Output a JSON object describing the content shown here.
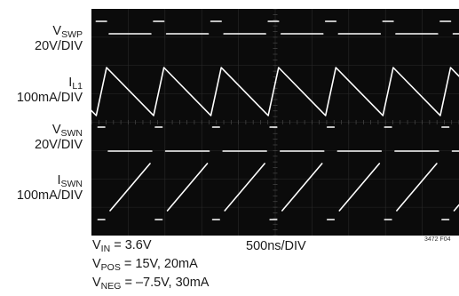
{
  "chart_data": {
    "type": "line",
    "title": "",
    "timebase": "500ns/DIV",
    "figure_id": "3472 F04",
    "traces": [
      {
        "symbol": "V",
        "subscript": "SWP",
        "scale": "20V/DIV"
      },
      {
        "symbol": "I",
        "subscript": "L1",
        "scale": "100mA/DIV"
      },
      {
        "symbol": "V",
        "subscript": "SWN",
        "scale": "20V/DIV"
      },
      {
        "symbol": "I",
        "subscript": "SWN",
        "scale": "100mA/DIV"
      }
    ],
    "conditions": [
      {
        "symbol": "V",
        "subscript": "IN",
        "value": "= 3.6V"
      },
      {
        "symbol": "V",
        "subscript": "POS",
        "value": "= 15V, 20mA"
      },
      {
        "symbol": "V",
        "subscript": "NEG",
        "value": "= –7.5V, 30mA"
      }
    ],
    "x_divisions": 10,
    "y_divisions": 8,
    "switching_period_div": 1.56,
    "switch_on_fraction": 0.18,
    "grid": true,
    "trace_color": "#ffffff",
    "background_color": "#0b0b0b"
  }
}
